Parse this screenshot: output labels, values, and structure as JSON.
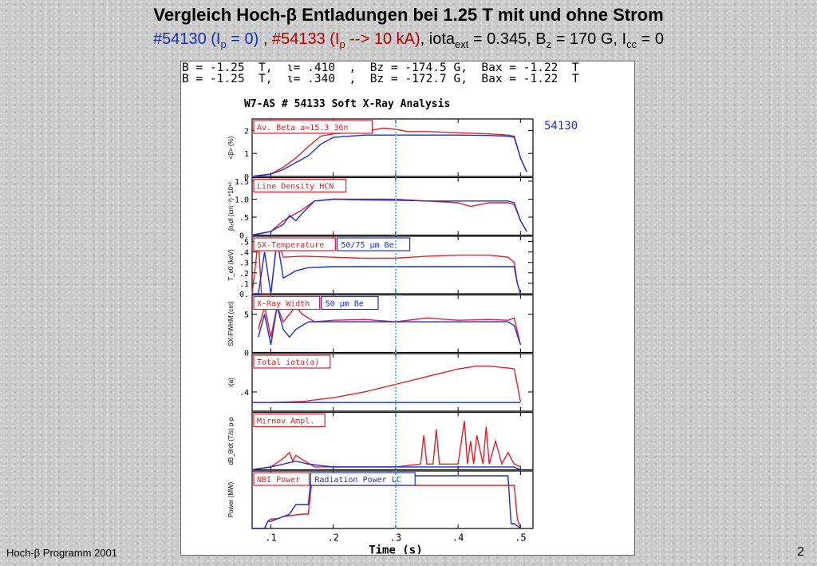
{
  "slide": {
    "title": "Vergleich Hoch-β Entladungen bei 1.25 T mit und ohne Strom",
    "subtitle_a": "#54130 (I",
    "subtitle_a_sub": "p",
    "subtitle_b": " = 0)",
    "subtitle_sep": " , ",
    "subtitle_c": "#54133 (I",
    "subtitle_c_sub": "p",
    "subtitle_d": " --> 10 kA)",
    "subtitle_e": ", iota",
    "subtitle_e_sub": "ext",
    "subtitle_f": " = 0.345, B",
    "subtitle_f_sub": "z",
    "subtitle_g": " = 170 G, I",
    "subtitle_g_sub": "cc",
    "subtitle_h": " = 0",
    "footer_left": "Hoch-β Programm 2001",
    "page_number": "2"
  },
  "conditions": [
    "B = -1.25  T,  ι= .410  ,  Bz = -174.5 G,  Bax = -1.22  T",
    "B = -1.25  T,  ι= .340  ,  Bz = -172.7 G,  Bax = -1.22  T"
  ],
  "colors": {
    "red": "#e0202a",
    "blue": "#1a2fd0",
    "cyan": "#20c8d8",
    "dark": "#000000"
  },
  "chart_data": {
    "type": "line",
    "title": "W7-AS # 54133  Soft X-Ray Analysis",
    "shot_label": "54130",
    "xlabel": "Time (s)",
    "xlim": [
      0.07,
      0.52
    ],
    "xticks": [
      0.1,
      0.2,
      0.3,
      0.4,
      0.5
    ],
    "xtick_labels": [
      ".1",
      ".2",
      ".3",
      ".4",
      ".5"
    ],
    "marker_line_x": 0.3,
    "panels": [
      {
        "label": "Av. Beta  a=15.3  36n",
        "ylabel": "<β> (%)",
        "ylim": [
          0,
          2.5
        ],
        "yticks": [
          0,
          1,
          2
        ],
        "ytick_labels": [
          "0",
          "1",
          "2"
        ],
        "series": [
          {
            "color": "red",
            "x": [
              0.07,
              0.1,
              0.12,
              0.14,
              0.16,
              0.18,
              0.2,
              0.25,
              0.28,
              0.3,
              0.32,
              0.35,
              0.4,
              0.45,
              0.48,
              0.49,
              0.5,
              0.51
            ],
            "y": [
              0,
              0.1,
              0.4,
              0.8,
              1.3,
              1.75,
              1.85,
              1.95,
              2.1,
              2.05,
              1.95,
              1.95,
              1.9,
              1.85,
              1.8,
              1.75,
              0.8,
              0.2
            ]
          },
          {
            "color": "blue",
            "x": [
              0.07,
              0.1,
              0.12,
              0.14,
              0.16,
              0.18,
              0.2,
              0.25,
              0.3,
              0.35,
              0.4,
              0.45,
              0.48,
              0.49,
              0.5,
              0.51
            ],
            "y": [
              0,
              0.1,
              0.3,
              0.6,
              0.9,
              1.4,
              1.7,
              1.8,
              1.8,
              1.8,
              1.8,
              1.78,
              1.75,
              1.7,
              0.8,
              0.2
            ]
          }
        ]
      },
      {
        "label": "Line Density HCN",
        "ylabel": "∫nₑdl (cm⁻²) *10¹⁶",
        "ylim": [
          0,
          1.6
        ],
        "yticks": [
          0,
          0.5,
          1.0,
          1.5
        ],
        "ytick_labels": [
          "0.",
          ".5",
          "1.0",
          "1.5"
        ],
        "series": [
          {
            "color": "red",
            "x": [
              0.07,
              0.1,
              0.12,
              0.13,
              0.15,
              0.17,
              0.2,
              0.25,
              0.3,
              0.35,
              0.4,
              0.42,
              0.45,
              0.48,
              0.49,
              0.5,
              0.51
            ],
            "y": [
              0,
              0.1,
              0.4,
              0.5,
              0.7,
              0.95,
              1.0,
              1.0,
              1.0,
              0.95,
              0.9,
              0.8,
              0.9,
              0.9,
              0.85,
              0.4,
              0.1
            ]
          },
          {
            "color": "blue",
            "x": [
              0.07,
              0.1,
              0.12,
              0.13,
              0.14,
              0.15,
              0.17,
              0.2,
              0.25,
              0.3,
              0.35,
              0.4,
              0.45,
              0.48,
              0.49,
              0.5,
              0.51
            ],
            "y": [
              0,
              0.1,
              0.3,
              0.55,
              0.4,
              0.6,
              0.95,
              1.0,
              0.98,
              0.97,
              0.95,
              0.95,
              0.95,
              0.95,
              0.9,
              0.4,
              0.1
            ]
          }
        ]
      },
      {
        "label": "SX-Temperature",
        "label2": "50/75  μm Be",
        "ylabel": "T_e0 (keV)",
        "ylim": [
          0,
          0.55
        ],
        "yticks": [
          0,
          0.1,
          0.2,
          0.3,
          0.4,
          0.5
        ],
        "ytick_labels": [
          "0.",
          ".1",
          ".2",
          ".3",
          ".4",
          ".5"
        ],
        "series": [
          {
            "color": "red",
            "x": [
              0.07,
              0.08,
              0.085,
              0.09,
              0.1,
              0.11,
              0.12,
              0.15,
              0.2,
              0.25,
              0.3,
              0.35,
              0.4,
              0.45,
              0.48,
              0.49,
              0.495,
              0.5
            ],
            "y": [
              0,
              0.52,
              0,
              0,
              0,
              0.52,
              0.35,
              0.36,
              0.35,
              0.34,
              0.34,
              0.36,
              0.37,
              0.37,
              0.35,
              0.3,
              0.1,
              0
            ]
          },
          {
            "color": "blue",
            "x": [
              0.07,
              0.08,
              0.09,
              0.1,
              0.11,
              0.12,
              0.14,
              0.16,
              0.2,
              0.25,
              0.3,
              0.35,
              0.4,
              0.45,
              0.48,
              0.49,
              0.495,
              0.5
            ],
            "y": [
              0,
              0,
              0.4,
              0,
              0.52,
              0.15,
              0.22,
              0.25,
              0.26,
              0.26,
              0.26,
              0.26,
              0.26,
              0.26,
              0.26,
              0.26,
              0.1,
              0
            ]
          }
        ]
      },
      {
        "label": "X-Ray Width",
        "label2": "50  μm Be",
        "ylabel": "SX-FWHM (cm)",
        "ylim": [
          0,
          7.5
        ],
        "yticks": [
          0,
          5
        ],
        "ytick_labels": [
          "0",
          "5"
        ],
        "series": [
          {
            "color": "red",
            "x": [
              0.08,
              0.09,
              0.1,
              0.11,
              0.12,
              0.13,
              0.14,
              0.15,
              0.17,
              0.2,
              0.25,
              0.3,
              0.35,
              0.4,
              0.45,
              0.48,
              0.49,
              0.5
            ],
            "y": [
              3,
              6,
              2,
              6,
              4,
              5,
              6,
              5,
              4,
              4.2,
              4.3,
              4,
              4.5,
              4.2,
              4.3,
              4.2,
              4.5,
              1
            ]
          },
          {
            "color": "blue",
            "x": [
              0.08,
              0.09,
              0.1,
              0.11,
              0.12,
              0.13,
              0.14,
              0.16,
              0.2,
              0.25,
              0.3,
              0.35,
              0.4,
              0.45,
              0.48,
              0.49,
              0.5
            ],
            "y": [
              2,
              5,
              1,
              6,
              3,
              2,
              3,
              4,
              4,
              4,
              4,
              4,
              4,
              4,
              4,
              3.5,
              1
            ]
          }
        ]
      },
      {
        "label": "Total iota(a)",
        "ylabel": "ι(a)",
        "ylim": [
          0.3,
          0.6
        ],
        "yticks": [
          0.4
        ],
        "ytick_labels": [
          ".4"
        ],
        "series": [
          {
            "color": "red",
            "x": [
              0.07,
              0.1,
              0.15,
              0.2,
              0.25,
              0.3,
              0.35,
              0.4,
              0.43,
              0.45,
              0.48,
              0.49,
              0.5
            ],
            "y": [
              0.345,
              0.345,
              0.35,
              0.37,
              0.4,
              0.44,
              0.48,
              0.52,
              0.535,
              0.535,
              0.525,
              0.52,
              0.35
            ]
          },
          {
            "color": "blue",
            "x": [
              0.07,
              0.5
            ],
            "y": [
              0.345,
              0.345
            ]
          }
        ]
      },
      {
        "label": "Mirnov Ampl.",
        "ylabel": "dB_θ/dt (T/s) p-p",
        "ylim": [
          0,
          1
        ],
        "yticks": [],
        "ytick_labels": [],
        "series": [
          {
            "color": "red",
            "x": [
              0.07,
              0.08,
              0.1,
              0.12,
              0.13,
              0.135,
              0.14,
              0.17,
              0.2,
              0.3,
              0.34,
              0.345,
              0.35,
              0.36,
              0.365,
              0.37,
              0.4,
              0.41,
              0.415,
              0.42,
              0.425,
              0.43,
              0.44,
              0.445,
              0.45,
              0.46,
              0.47,
              0.48,
              0.49,
              0.5
            ],
            "y": [
              0,
              0.02,
              0.05,
              0.2,
              0.3,
              0.15,
              0.25,
              0.05,
              0.05,
              0.05,
              0.1,
              0.6,
              0.1,
              0.1,
              0.7,
              0.1,
              0.1,
              0.85,
              0.1,
              0.5,
              0.1,
              0.6,
              0.1,
              0.75,
              0.1,
              0.5,
              0.1,
              0.3,
              0.1,
              0.05
            ]
          },
          {
            "color": "blue",
            "x": [
              0.07,
              0.08,
              0.1,
              0.12,
              0.14,
              0.16,
              0.2,
              0.3,
              0.4,
              0.45,
              0.48,
              0.49,
              0.5
            ],
            "y": [
              0,
              0.02,
              0.05,
              0.1,
              0.15,
              0.1,
              0.05,
              0.05,
              0.05,
              0.05,
              0.05,
              0.05,
              0
            ]
          }
        ]
      },
      {
        "label": "NBI Power",
        "label2": "Radiation Power LC",
        "ylabel": "Power (MW)",
        "ylim": [
          0,
          1.2
        ],
        "yticks": [],
        "ytick_labels": [],
        "series": [
          {
            "color": "red",
            "x": [
              0.07,
              0.09,
              0.095,
              0.1,
              0.11,
              0.12,
              0.15,
              0.16,
              0.165,
              0.2,
              0.3,
              0.4,
              0.49,
              0.495,
              0.5
            ],
            "y": [
              0,
              0,
              0.15,
              0.2,
              0.2,
              0.25,
              0.3,
              0.3,
              0.9,
              0.9,
              0.9,
              0.9,
              0.9,
              0.2,
              0
            ]
          },
          {
            "color": "blue",
            "x": [
              0.07,
              0.09,
              0.095,
              0.1,
              0.13,
              0.14,
              0.15,
              0.16,
              0.165,
              0.2,
              0.3,
              0.4,
              0.48,
              0.485,
              0.49,
              0.5
            ],
            "y": [
              0,
              0,
              0.15,
              0.15,
              0.3,
              0.5,
              0.5,
              0.5,
              1.1,
              1.1,
              1.1,
              1.1,
              1.1,
              0.1,
              0.1,
              0
            ]
          }
        ]
      }
    ]
  }
}
